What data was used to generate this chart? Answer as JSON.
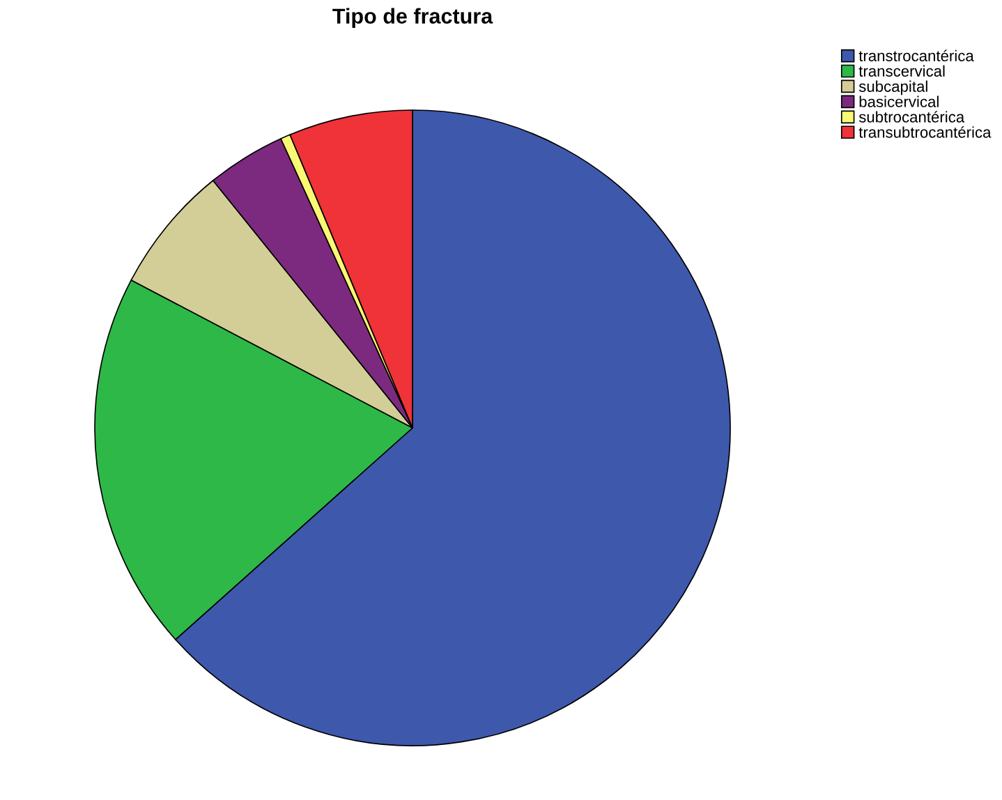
{
  "chart_data": {
    "type": "pie",
    "title": "Tipo de fractura",
    "categories": [
      "transtrocantérica",
      "transcervical",
      "subcapital",
      "basicervical",
      "subtrocantérica",
      "transubtrocantérica"
    ],
    "values": [
      63.4,
      19.3,
      6.5,
      4.0,
      0.5,
      6.3
    ],
    "colors": [
      "#3e58ac",
      "#2eb848",
      "#d3ce97",
      "#7c2a7f",
      "#fbf873",
      "#ef3338"
    ],
    "legend": "top right"
  }
}
